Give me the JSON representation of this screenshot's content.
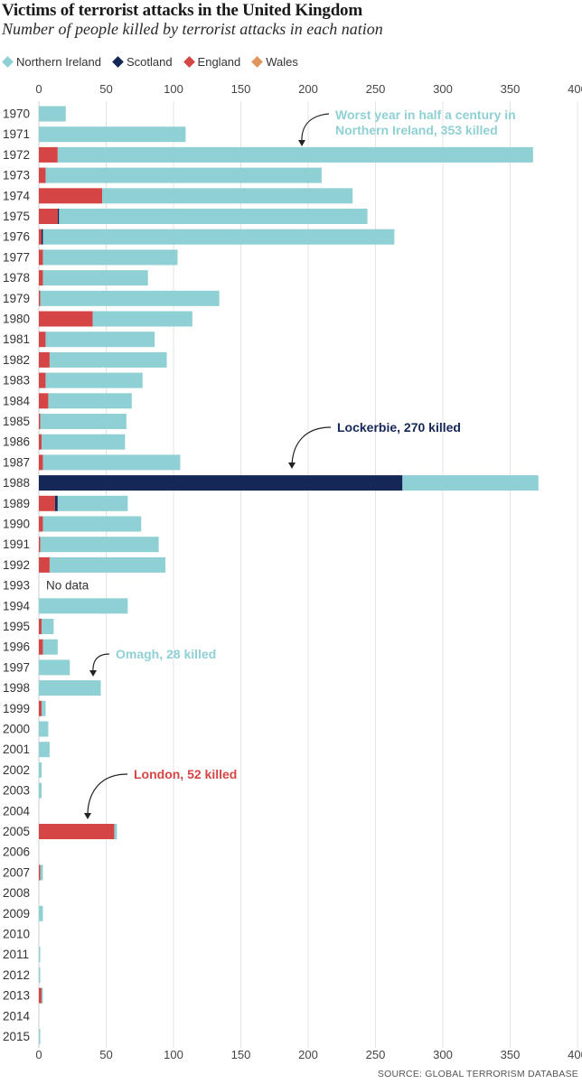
{
  "header": {
    "title": "Victims of terrorist attacks in the United Kingdom",
    "subtitle": "Number of people killed by terrorist attacks in each nation"
  },
  "legend": [
    {
      "label": "Northern Ireland",
      "color": "#8fd0d4"
    },
    {
      "label": "Scotland",
      "color": "#152757"
    },
    {
      "label": "England",
      "color": "#d64545"
    },
    {
      "label": "Wales",
      "color": "#e0955c"
    }
  ],
  "source": "SOURCE: GLOBAL TERRORISM DATABASE",
  "chart_data": {
    "type": "bar",
    "orientation": "horizontal",
    "stacked": true,
    "xlim": [
      0,
      400
    ],
    "xticks": [
      0,
      50,
      100,
      150,
      200,
      250,
      300,
      350,
      400
    ],
    "grid": "vertical",
    "legend_position": "top",
    "categories": [
      "1970",
      "1971",
      "1972",
      "1973",
      "1974",
      "1975",
      "1976",
      "1977",
      "1978",
      "1979",
      "1980",
      "1981",
      "1982",
      "1983",
      "1984",
      "1985",
      "1986",
      "1987",
      "1988",
      "1989",
      "1990",
      "1991",
      "1992",
      "1993",
      "1994",
      "1995",
      "1996",
      "1997",
      "1998",
      "1999",
      "2000",
      "2001",
      "2002",
      "2003",
      "2004",
      "2005",
      "2006",
      "2007",
      "2008",
      "2009",
      "2010",
      "2011",
      "2012",
      "2013",
      "2014",
      "2015"
    ],
    "series": [
      {
        "name": "England",
        "color": "#d64545",
        "values": [
          0,
          0,
          14,
          5,
          47,
          14,
          2,
          3,
          3,
          1,
          40,
          5,
          8,
          5,
          7,
          1,
          2,
          3,
          0,
          12,
          3,
          1,
          8,
          0,
          0,
          2,
          3,
          0,
          0,
          2,
          0,
          0,
          0,
          0,
          0,
          56,
          0,
          1,
          0,
          0,
          0,
          0,
          0,
          2,
          0,
          0
        ]
      },
      {
        "name": "Scotland",
        "color": "#152757",
        "values": [
          0,
          0,
          0,
          0,
          0,
          1,
          1,
          0,
          0,
          0,
          0,
          0,
          0,
          0,
          0,
          0,
          0,
          0,
          270,
          2,
          0,
          0,
          0,
          0,
          0,
          0,
          0,
          0,
          0,
          0,
          0,
          0,
          0,
          0,
          0,
          0,
          0,
          0,
          0,
          0,
          0,
          0,
          0,
          0,
          0,
          0
        ]
      },
      {
        "name": "Wales",
        "color": "#e0955c",
        "values": [
          0,
          0,
          0,
          0,
          0,
          0,
          0,
          0,
          0,
          0,
          0,
          0,
          0,
          0,
          0,
          0,
          0,
          0,
          0,
          0,
          0,
          0,
          0,
          0,
          0,
          0,
          0,
          0,
          0,
          0,
          0,
          0,
          0,
          0,
          0,
          0,
          0,
          0,
          0,
          0,
          0,
          0,
          0,
          0,
          0,
          0
        ]
      },
      {
        "name": "Northern Ireland",
        "color": "#8fd0d4",
        "values": [
          20,
          109,
          353,
          205,
          186,
          229,
          261,
          100,
          78,
          133,
          74,
          81,
          87,
          72,
          62,
          64,
          62,
          102,
          101,
          52,
          73,
          88,
          86,
          0,
          66,
          9,
          11,
          23,
          46,
          3,
          7,
          8,
          2,
          2,
          0,
          2,
          0,
          2,
          0,
          3,
          0,
          1,
          1,
          1,
          0,
          1
        ]
      }
    ],
    "no_data_label": {
      "category": "1993",
      "text": "No data"
    },
    "annotations": [
      {
        "lines": [
          "Worst year in half a century in",
          "Northern Ireland, 353 killed"
        ],
        "color": "#8fd0d4",
        "points_to": "1972"
      },
      {
        "lines": [
          "Lockerbie, 270 killed"
        ],
        "color": "#152757",
        "points_to": "1988"
      },
      {
        "lines": [
          "Omagh, 28 killed"
        ],
        "color": "#8fd0d4",
        "points_to": "1998"
      },
      {
        "lines": [
          "London, 52 killed"
        ],
        "color": "#d64545",
        "points_to": "2005"
      }
    ]
  }
}
